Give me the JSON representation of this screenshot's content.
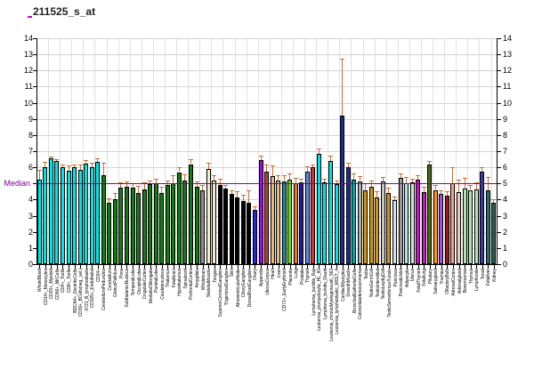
{
  "title": "211525_s_at",
  "chart_data": {
    "type": "bar",
    "title": "211525_s_at",
    "xlabel": "",
    "ylabel": "",
    "ylim": [
      0,
      14
    ],
    "yticks": [
      0,
      1,
      2,
      3,
      4,
      5,
      6,
      7,
      8,
      9,
      10,
      11,
      12,
      13,
      14
    ],
    "grid": true,
    "legend": "none",
    "median": {
      "label": "Median",
      "value": 5,
      "color": "#8000a0"
    },
    "error_bar_color": "#c86e32",
    "categories": [
      "WholeBlood",
      "CD14+_Monocytes",
      "CD33+_Myeloid",
      "CD56+_NKCells",
      "CD4+_Tcells",
      "CD8+_Tcells",
      "BDCA4+_DentriticCells",
      "CD19+_BCells(neg._sel.)",
      "X721_B_lymphoblasts",
      "CD105+_Endothelial",
      "CD34+",
      "CerebellumPeduncles",
      "Cerebellum",
      "GlobusPallidus",
      "Pons",
      "SubthalamicNucleus",
      "TemporalLobe",
      "OccipitalLobe",
      "CingulateCortex",
      "MedullaOblongata",
      "ParietalLobe",
      "Caudatenucleus",
      "Thalamus",
      "Fetalbrain",
      "Hypothalamus",
      "Spinalcord",
      "PrefrontalCortex",
      "Amygdala",
      "Wholebrain",
      "SkeletalMuscle",
      "Tongue",
      "SuperiorCervicalGanglion",
      "TrigeminalGanglion",
      "Skin",
      "AtrioventricularNode",
      "CiliaryGanglion",
      "DorsalRootGanglion",
      "Ovary",
      "Appendix",
      "UterusCorpus",
      "Heart",
      "Liver",
      "CD71+_EarlyErythroid",
      "Placenta",
      "Lung",
      "Prostate",
      "Thyroid",
      "Lymphoma_burkitts_Raji",
      "Leukemia_promyelocytic_HL_60",
      "Lymphoma_burkitts_Daudi",
      "Leukemia_chronicMyelogenousK_562",
      "Leukemia_lymphoblastic_MOLT_4",
      "CardiacMyocytes",
      "SmoothMuscle",
      "BronchialEpithelialCells",
      "Colorectaladenocarcinoma",
      "Testis",
      "TestisGermCell",
      "TestisInterstitial",
      "TestisLeydigCell",
      "TestisSeminiferousTubule",
      "Pancreas",
      "PancreaticIslet",
      "Adipocyte",
      "Uterus",
      "FetalThyroid",
      "Fetallung",
      "Pituitary",
      "Salivarygland",
      "Trachea",
      "OlfactoryBulb",
      "AdrenalCortex",
      "Adrenalgland",
      "Bonemarrow",
      "Thymus",
      "Lymphnode",
      "Tonsil",
      "Fetalliver",
      "Kidney"
    ],
    "values": [
      5.25,
      6.0,
      6.55,
      6.4,
      6.0,
      5.8,
      6.0,
      5.85,
      6.25,
      6.0,
      6.35,
      5.5,
      3.8,
      4.0,
      4.75,
      4.8,
      4.75,
      4.4,
      4.65,
      4.95,
      5.0,
      4.4,
      4.9,
      5.0,
      5.7,
      5.2,
      6.2,
      4.8,
      4.55,
      5.9,
      5.2,
      4.9,
      4.7,
      4.35,
      4.15,
      3.9,
      3.8,
      3.35,
      6.45,
      5.75,
      5.45,
      5.2,
      5.15,
      5.25,
      5.0,
      5.1,
      5.75,
      6.0,
      6.85,
      5.05,
      6.4,
      4.95,
      9.2,
      6.0,
      5.25,
      5.15,
      4.6,
      4.8,
      4.15,
      5.15,
      4.4,
      3.95,
      5.35,
      5.0,
      5.05,
      5.25,
      4.45,
      6.15,
      4.6,
      4.35,
      4.25,
      5.0,
      4.45,
      4.7,
      4.6,
      4.65,
      5.75,
      4.6,
      3.8
    ],
    "errors_high": [
      5.85,
      6.35,
      6.65,
      6.5,
      6.2,
      6.1,
      6.15,
      6.2,
      6.45,
      6.3,
      6.55,
      6.3,
      4.1,
      4.4,
      5.1,
      5.15,
      5.0,
      4.85,
      5.1,
      5.2,
      5.3,
      4.8,
      5.2,
      5.5,
      6.0,
      5.55,
      6.5,
      5.15,
      4.9,
      6.3,
      5.5,
      5.3,
      4.9,
      4.6,
      4.5,
      4.3,
      4.6,
      3.6,
      6.75,
      6.15,
      6.1,
      5.5,
      5.5,
      5.6,
      5.35,
      5.3,
      6.05,
      6.2,
      7.15,
      5.3,
      6.7,
      5.2,
      12.75,
      6.3,
      5.6,
      5.45,
      5.0,
      5.2,
      4.5,
      5.4,
      4.75,
      4.2,
      5.65,
      5.4,
      5.3,
      5.5,
      4.8,
      6.4,
      4.9,
      4.6,
      4.5,
      6.0,
      5.25,
      5.35,
      4.9,
      5.1,
      6.0,
      5.4,
      4.0
    ],
    "colors": [
      "#00e6e6",
      "#00e6e6",
      "#00e6e6",
      "#00e6e6",
      "#00e6e6",
      "#00e6e6",
      "#00e6e6",
      "#00e6e6",
      "#00e6e6",
      "#00e6e6",
      "#00e6e6",
      "#157a15",
      "#157a15",
      "#157a15",
      "#157a15",
      "#157a15",
      "#157a15",
      "#157a15",
      "#157a15",
      "#157a15",
      "#157a15",
      "#157a15",
      "#157a15",
      "#157a15",
      "#157a15",
      "#157a15",
      "#157a15",
      "#157a15",
      "#8f8f8f",
      "#f2ecca",
      "#f2ecca",
      "#000000",
      "#000000",
      "#000000",
      "#000000",
      "#000000",
      "#000000",
      "#2424dd",
      "#9412d4",
      "#c23b2e",
      "#e5bc7f",
      "#e5bc7f",
      "#12918f",
      "#6fd612",
      "#e07b1e",
      "#1d1d8f",
      "#6488dd",
      "#e02f2f",
      "#00e6e6",
      "#00e6e6",
      "#00e6e6",
      "#00e6e6",
      "#1c2d92",
      "#1c2d92",
      "#00a8a8",
      "#ababab",
      "#d09418",
      "#d09418",
      "#d09418",
      "#c6c6c6",
      "#d09418",
      "#dedede",
      "#9a9a9a",
      "#abe7e7",
      "#c8f0c8",
      "#c214c2",
      "#c214c2",
      "#4c661d",
      "#ff9417",
      "#a24fe8",
      "#8f1d1d",
      "#f5a47e",
      "#f5c6ba",
      "#b5e3b5",
      "#b5e3b5",
      "#b5e3b5",
      "#3c3ca0",
      "#2f6e6e",
      "#305c50"
    ]
  }
}
